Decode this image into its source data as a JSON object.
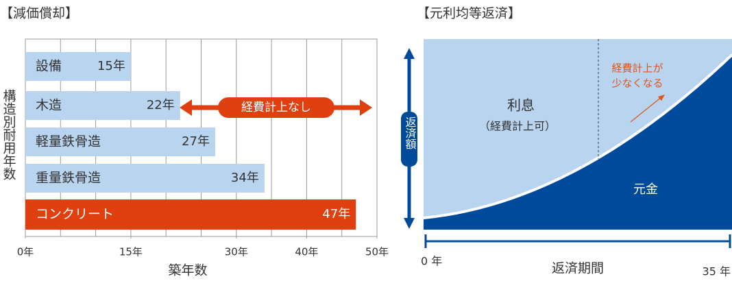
{
  "chart_data": [
    {
      "type": "bar",
      "orientation": "horizontal",
      "title": "【減価償却】",
      "x_label": "築年数",
      "y_label": "構造別耐用年数",
      "categories": [
        "設備",
        "木造",
        "軽量鉄骨造",
        "重量鉄骨造",
        "コンクリート"
      ],
      "values": [
        15,
        22,
        27,
        34,
        47
      ],
      "value_labels": [
        "15年",
        "22年",
        "27年",
        "34年",
        "47年"
      ],
      "colors": [
        "#b9d4ef",
        "#b9d4ef",
        "#b9d4ef",
        "#b9d4ef",
        "#e0400f"
      ],
      "xlim": [
        0,
        50
      ],
      "xticks": [
        {
          "value": 0,
          "label": "0年"
        },
        {
          "value": 15,
          "label": "15年"
        },
        {
          "value": 30,
          "label": "30年"
        },
        {
          "value": 40,
          "label": "40年"
        },
        {
          "value": 50,
          "label": "50年"
        }
      ],
      "xgrid": [
        0,
        5,
        10,
        15,
        20,
        25,
        30,
        35,
        40,
        45,
        50
      ],
      "annotation": {
        "text": "経費計上なし",
        "color": "#e0400f"
      }
    },
    {
      "type": "diagram",
      "title": "【元利均等返済】",
      "interest_label": "利息",
      "interest_note": "（経費計上可）",
      "principal_label": "元金",
      "y_label": "返済額",
      "x_label": "返済期間",
      "x_start": "0 年",
      "x_end": "35 年",
      "callout": [
        "経費計上が",
        "少なくなる"
      ],
      "callout_color": "#e0531a",
      "interest_color": "#b9d4ef",
      "principal_color": "#004a9c"
    }
  ]
}
